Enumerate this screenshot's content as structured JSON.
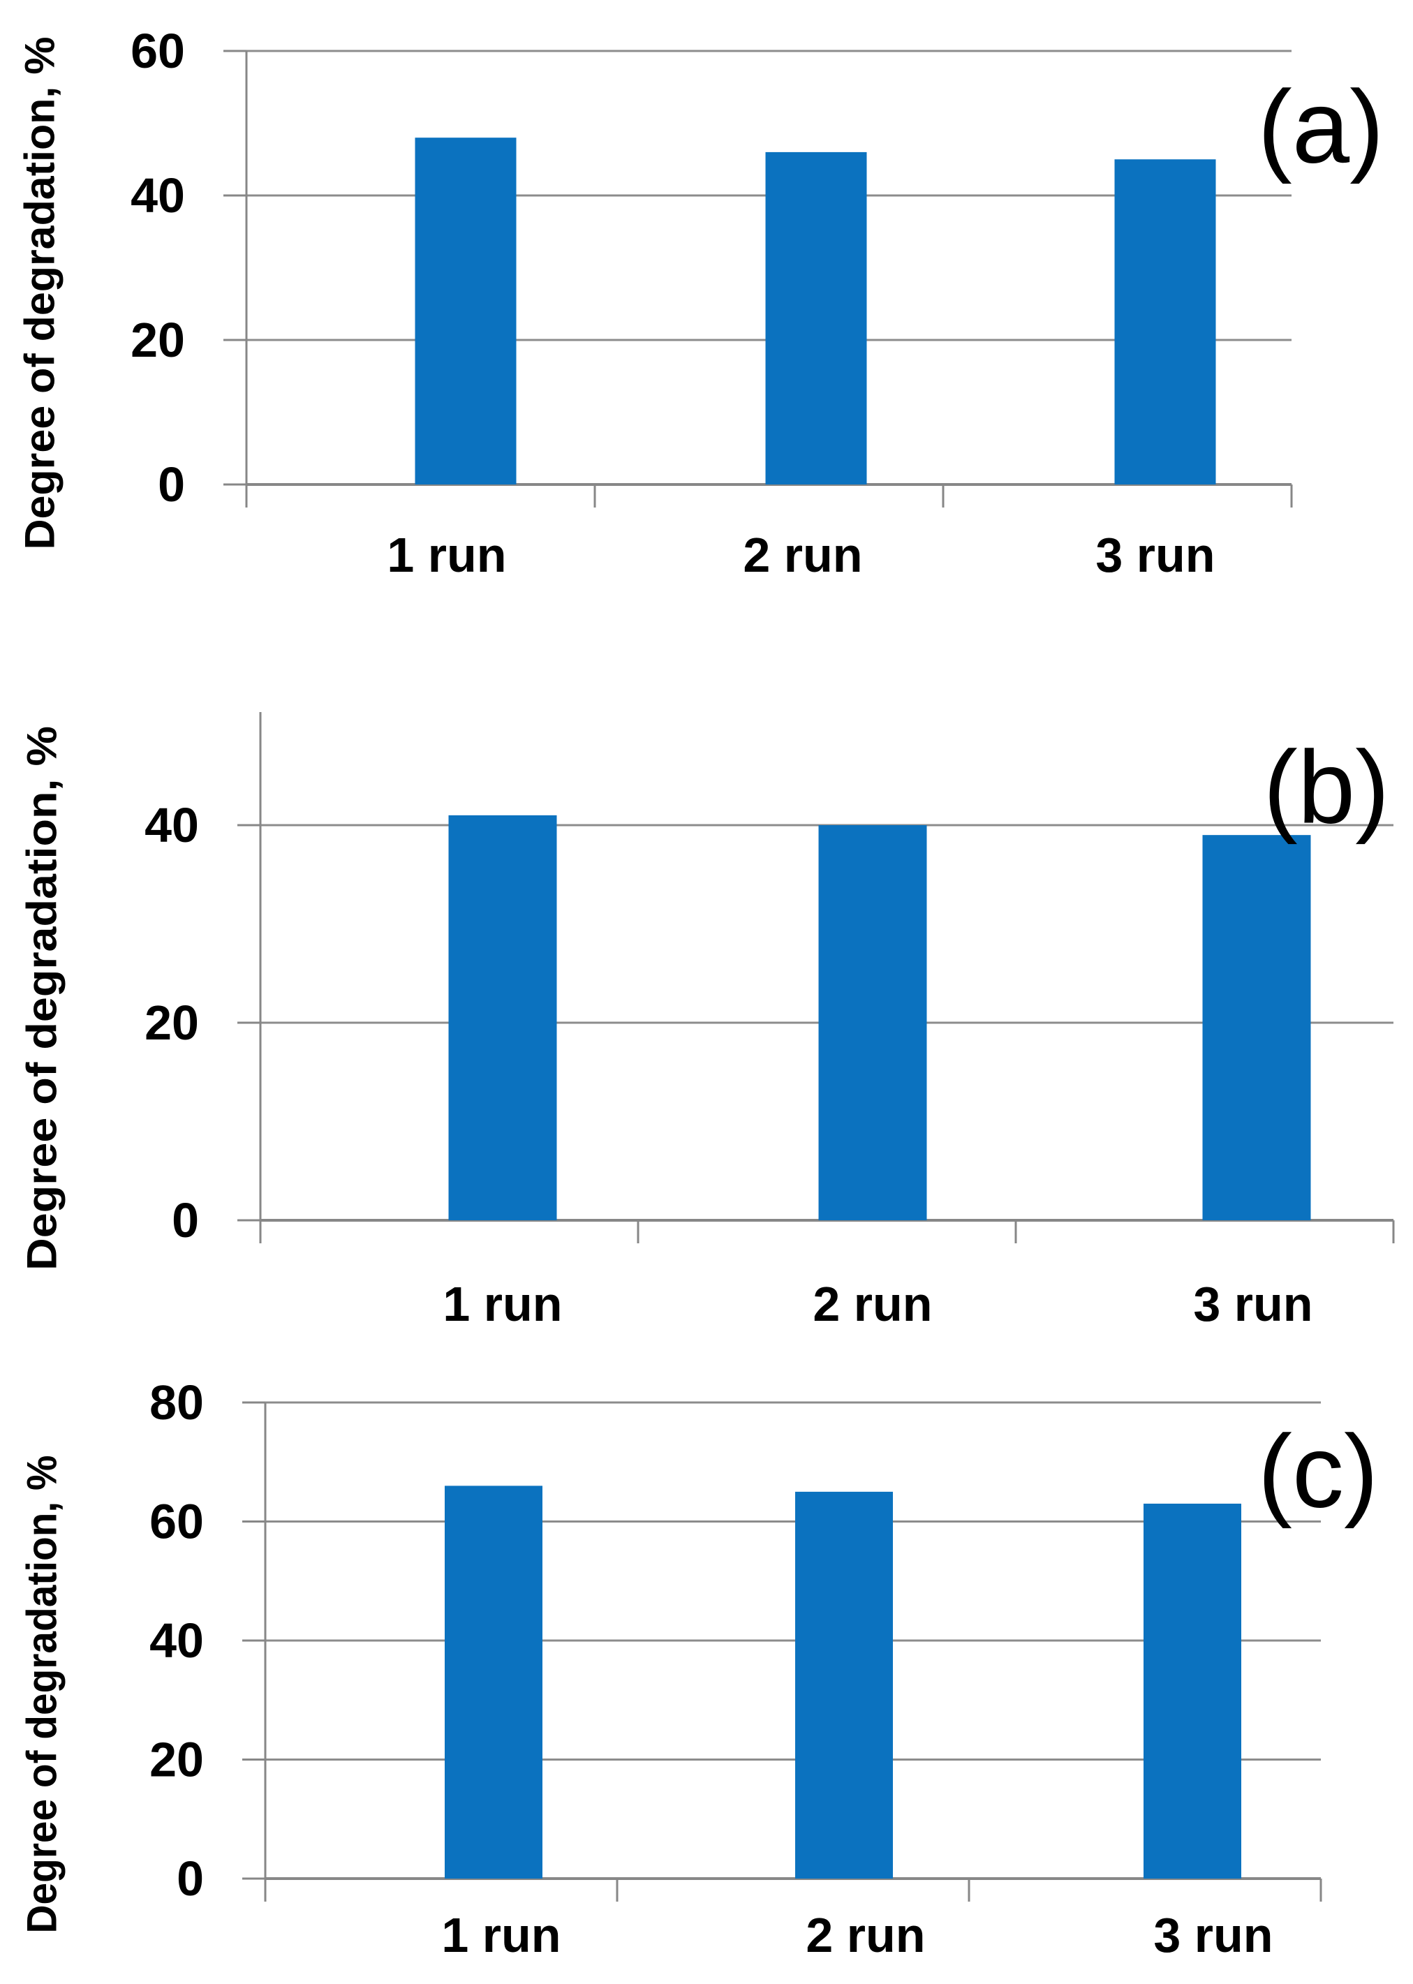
{
  "figure": {
    "background": "#ffffff",
    "y_axis_title": "Degree of degradation, %",
    "categories": [
      "1 run",
      "2 run",
      "3 run"
    ]
  },
  "chart_data": [
    {
      "type": "bar",
      "panel_label": "(a)",
      "title": "",
      "xlabel": "",
      "ylabel": "Degree of degradation, %",
      "categories": [
        "1 run",
        "2 run",
        "3 run"
      ],
      "values": [
        48,
        46,
        45
      ],
      "ylim": [
        0,
        60
      ],
      "yticks": [
        0,
        20,
        40,
        60
      ],
      "grid": true,
      "legend": "none",
      "bar_color": "#0b72bf"
    },
    {
      "type": "bar",
      "panel_label": "(b)",
      "title": "",
      "xlabel": "",
      "ylabel": "Degree of degradation, %",
      "categories": [
        "1 run",
        "2 run",
        "3 run"
      ],
      "values": [
        41,
        40,
        39
      ],
      "ylim": [
        0,
        51
      ],
      "yticks": [
        0,
        20,
        40
      ],
      "grid": true,
      "legend": "none",
      "bar_color": "#0b72bf"
    },
    {
      "type": "bar",
      "panel_label": "(c)",
      "title": "",
      "xlabel": "",
      "ylabel": "Degree of degradation, %",
      "categories": [
        "1 run",
        "2 run",
        "3 run"
      ],
      "values": [
        66,
        65,
        63
      ],
      "ylim": [
        0,
        80
      ],
      "yticks": [
        0,
        20,
        40,
        60,
        80
      ],
      "grid": true,
      "legend": "none",
      "bar_color": "#0b72bf"
    }
  ],
  "colors": {
    "bar": "#0b72bf",
    "axis_line": "#878787",
    "gridline": "#8c8c8c",
    "text": "#000000",
    "background": "#ffffff"
  }
}
